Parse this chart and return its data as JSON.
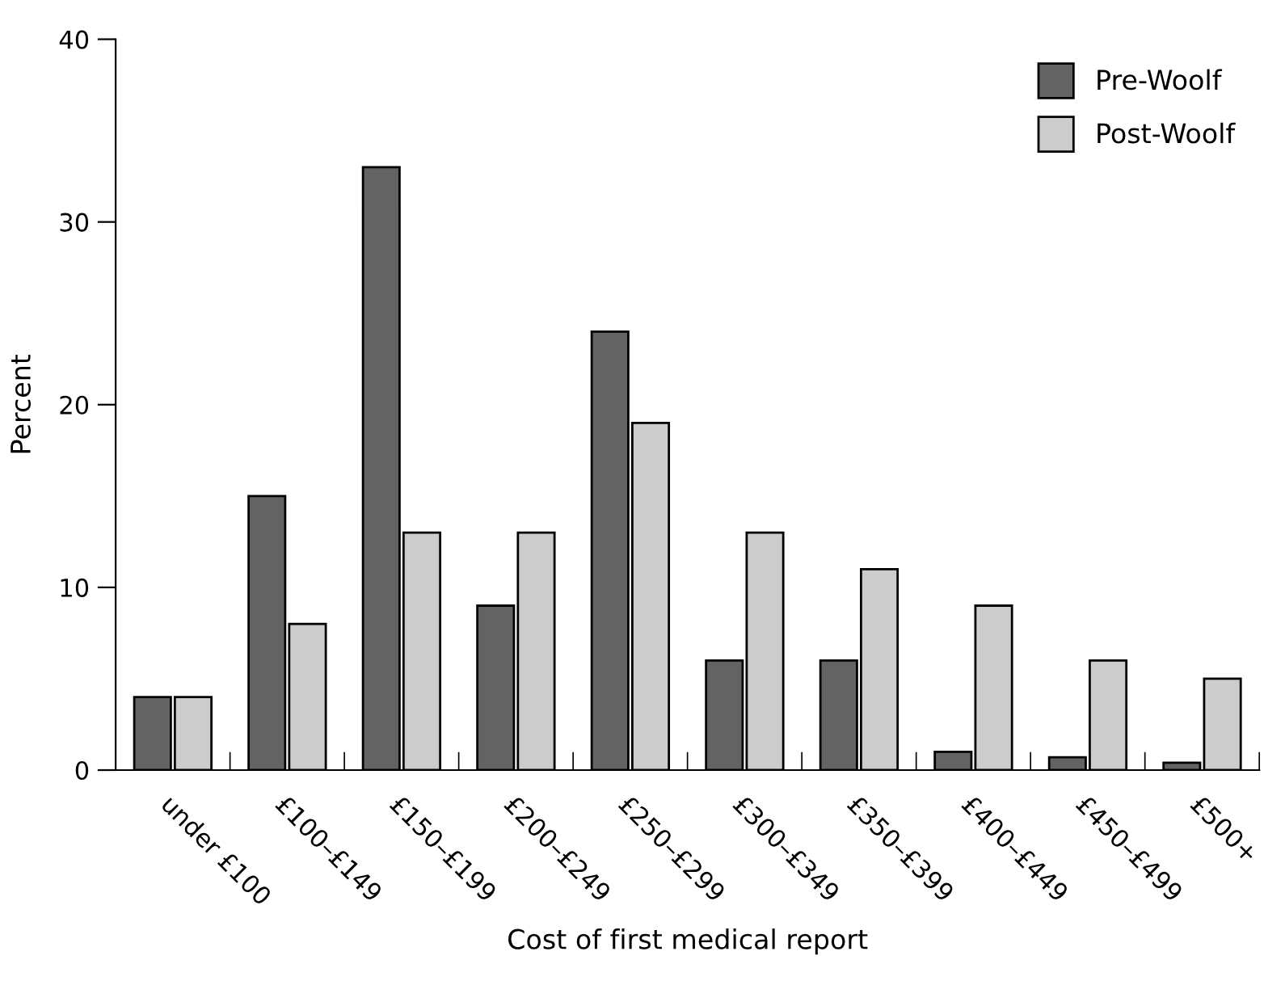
{
  "chart_data": {
    "type": "bar",
    "xlabel": "Cost of first medical report",
    "ylabel": "Percent",
    "categories": [
      "under £100",
      "£100–£149",
      "£150–£199",
      "£200–£249",
      "£250–£299",
      "£300–£349",
      "£350–£399",
      "£400–£449",
      "£450–£499",
      "£500+"
    ],
    "series": [
      {
        "name": "Pre-Woolf",
        "color": "#636363",
        "values": [
          4,
          15,
          33,
          9,
          24,
          6,
          6,
          1,
          0.7,
          0.4
        ]
      },
      {
        "name": "Post-Woolf",
        "color": "#cccccc",
        "values": [
          4,
          8,
          13,
          13,
          19,
          13,
          11,
          9,
          6,
          5
        ]
      }
    ],
    "ylim": [
      0,
      40
    ],
    "yticks": [
      0,
      10,
      20,
      30,
      40
    ],
    "grid": false,
    "legend": "top right"
  }
}
